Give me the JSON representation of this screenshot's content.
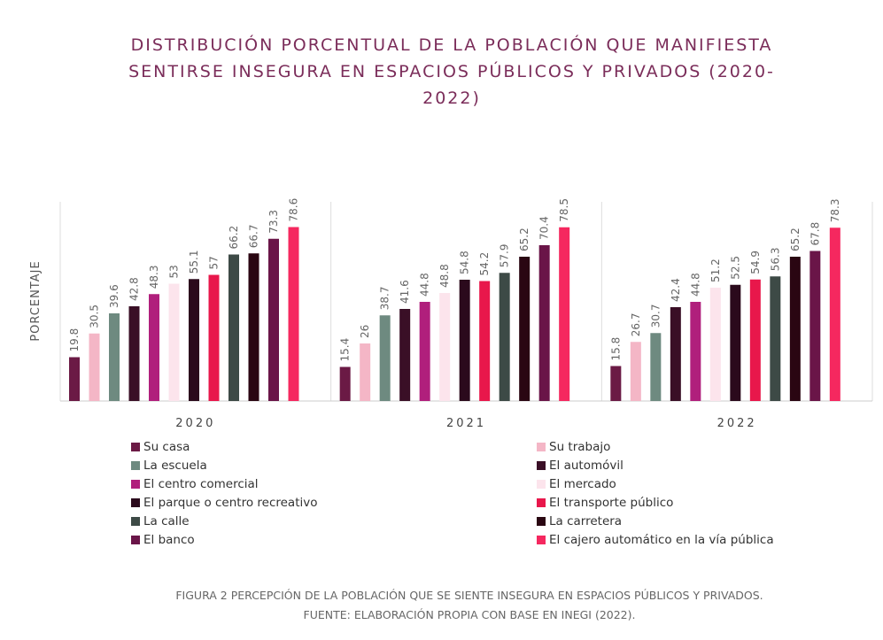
{
  "chart_data": {
    "type": "bar",
    "title": "DISTRIBUCIÓN PORCENTUAL DE LA POBLACIÓN QUE MANIFIESTA SENTIRSE INSEGURA EN ESPACIOS PÚBLICOS Y PRIVADOS (2020-2022)",
    "y_label": "PORCENTAJE",
    "caption": "FIGURA 2 PERCEPCIÓN DE LA POBLACIÓN QUE SE SIENTE INSEGURA EN ESPACIOS PÚBLICOS Y PRIVADOS. FUENTE: ELABORACIÓN PROPIA CON BASE EN INEGI (2022).",
    "categories": [
      "2020",
      "2021",
      "2022"
    ],
    "ylim": [
      0,
      90
    ],
    "series": [
      {
        "name": "Su casa",
        "color": "#6b1a45",
        "values": [
          19.8,
          15.4,
          15.8
        ]
      },
      {
        "name": "Su trabajo",
        "color": "#f4b6c6",
        "values": [
          30.5,
          26,
          26.7
        ]
      },
      {
        "name": "La escuela",
        "color": "#6e8a80",
        "values": [
          39.6,
          38.7,
          30.7
        ]
      },
      {
        "name": "El automóvil",
        "color": "#3a0f26",
        "values": [
          42.8,
          41.6,
          42.4
        ]
      },
      {
        "name": "El centro comercial",
        "color": "#b01f7c",
        "values": [
          48.3,
          44.8,
          44.8
        ]
      },
      {
        "name": "El mercado",
        "color": "#fce4ec",
        "values": [
          53,
          48.8,
          51.2
        ]
      },
      {
        "name": "El parque o centro recreativo",
        "color": "#2b0a1c",
        "values": [
          55.1,
          54.8,
          52.5
        ]
      },
      {
        "name": "El transporte público",
        "color": "#e8174b",
        "values": [
          57,
          54.2,
          54.9
        ]
      },
      {
        "name": "La calle",
        "color": "#3d4a46",
        "values": [
          66.2,
          57.9,
          56.3
        ]
      },
      {
        "name": "La carretera",
        "color": "#2a0612",
        "values": [
          66.7,
          65.2,
          65.2
        ]
      },
      {
        "name": "El banco",
        "color": "#6a1548",
        "values": [
          73.3,
          70.4,
          67.8
        ]
      },
      {
        "name": "El cajero automático en la vía pública",
        "color": "#f5285f",
        "values": [
          78.6,
          78.5,
          78.3
        ]
      }
    ]
  }
}
